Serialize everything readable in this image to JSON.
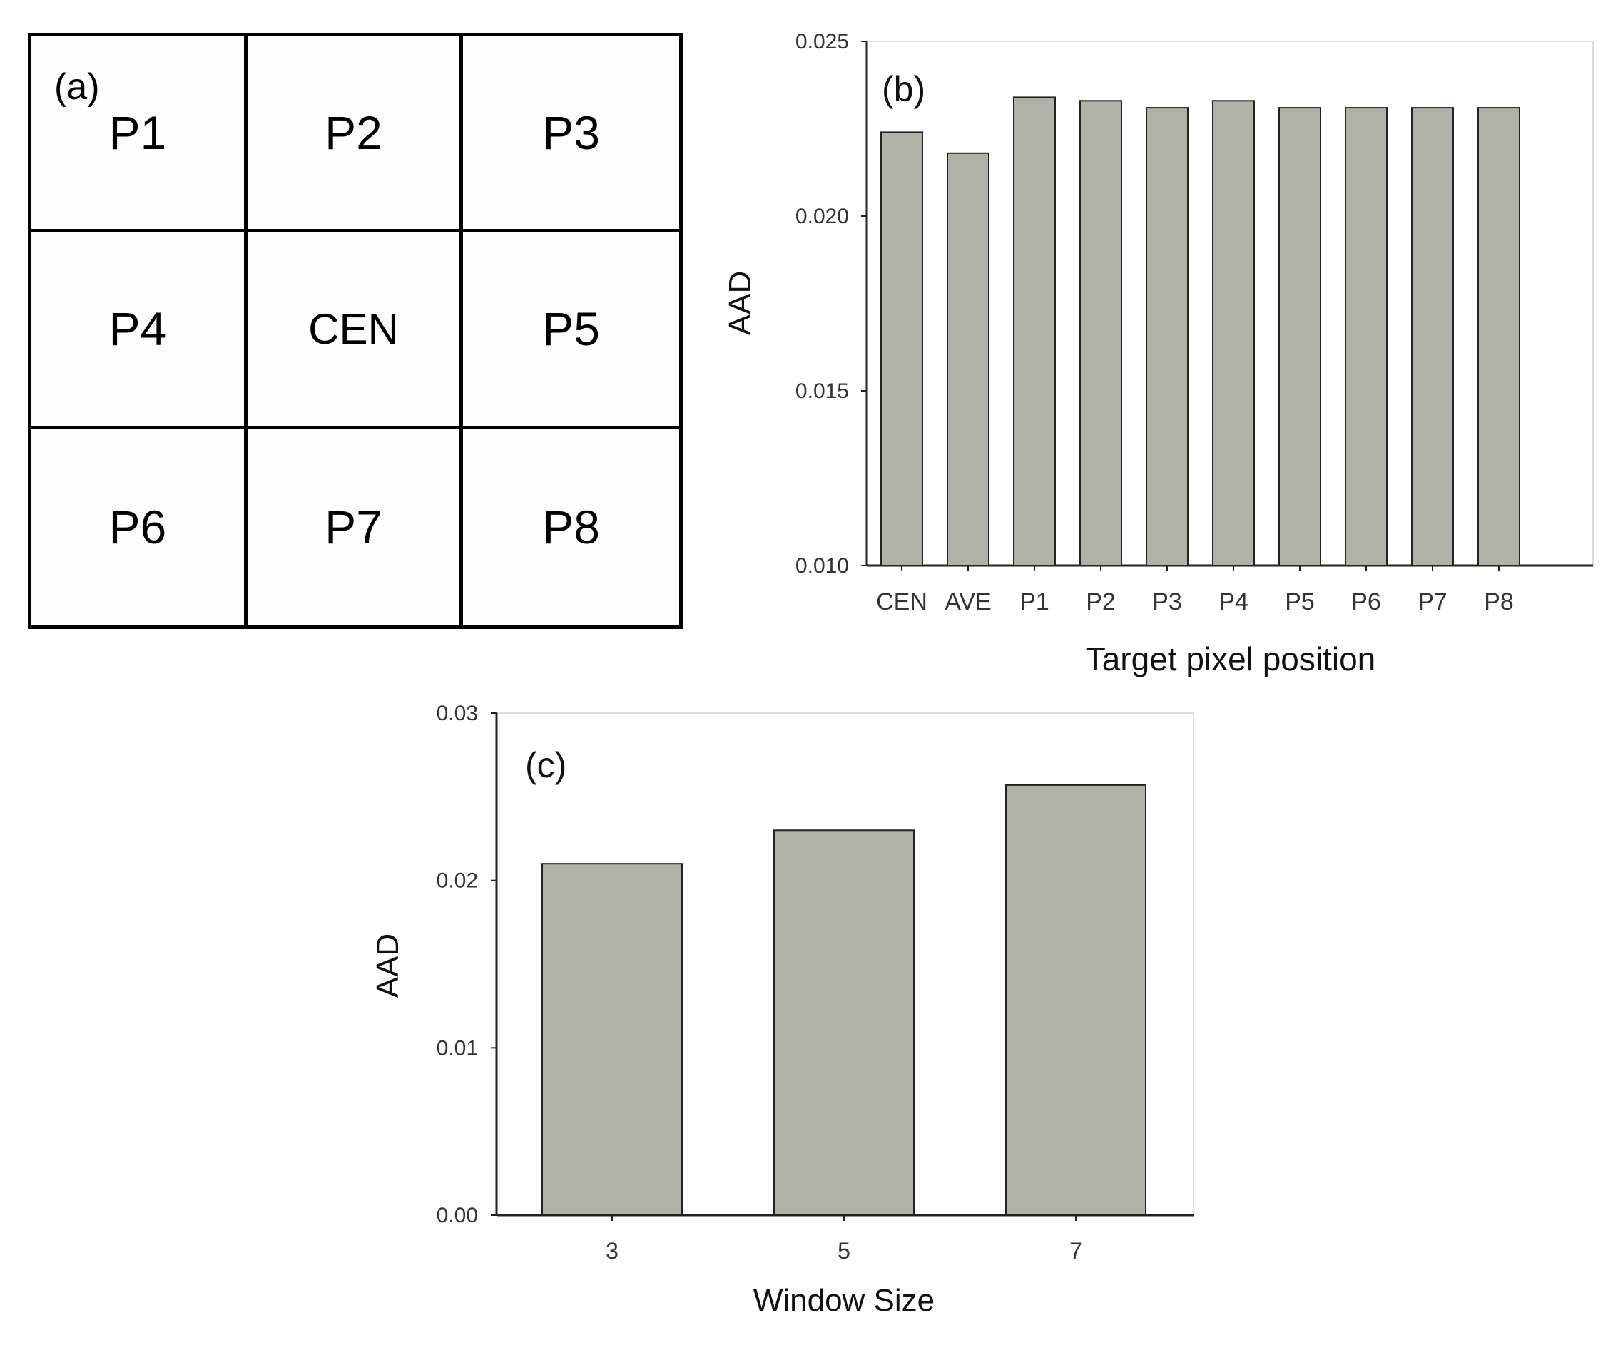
{
  "panel_a": {
    "label": "(a)",
    "cells": [
      "P1",
      "P2",
      "P3",
      "P4",
      "CEN",
      "P5",
      "P6",
      "P7",
      "P8"
    ]
  },
  "colors": {
    "bar_fill": "#b0b2a8",
    "bar_stroke": "#222222",
    "axis": "#222222"
  },
  "chart_data": [
    {
      "panel_label": "(b)",
      "type": "bar",
      "categories": [
        "CEN",
        "AVE",
        "P1",
        "P2",
        "P3",
        "P4",
        "P5",
        "P6",
        "P7",
        "P8"
      ],
      "values": [
        0.0224,
        0.0218,
        0.0234,
        0.0233,
        0.0231,
        0.0233,
        0.0231,
        0.0231,
        0.0231,
        0.0231
      ],
      "ylim": [
        0.01,
        0.025
      ],
      "yticks": [
        "0.010",
        "0.015",
        "0.020",
        "0.025"
      ],
      "xlabel": "Target pixel position",
      "ylabel": "AAD",
      "grid": false
    },
    {
      "panel_label": "(c)",
      "type": "bar",
      "categories": [
        "3",
        "5",
        "7"
      ],
      "values": [
        0.021,
        0.023,
        0.0257
      ],
      "ylim": [
        0.0,
        0.03
      ],
      "yticks": [
        "0.00",
        "0.01",
        "0.02",
        "0.03"
      ],
      "xlabel": "Window Size",
      "ylabel": "AAD",
      "grid": false
    }
  ]
}
